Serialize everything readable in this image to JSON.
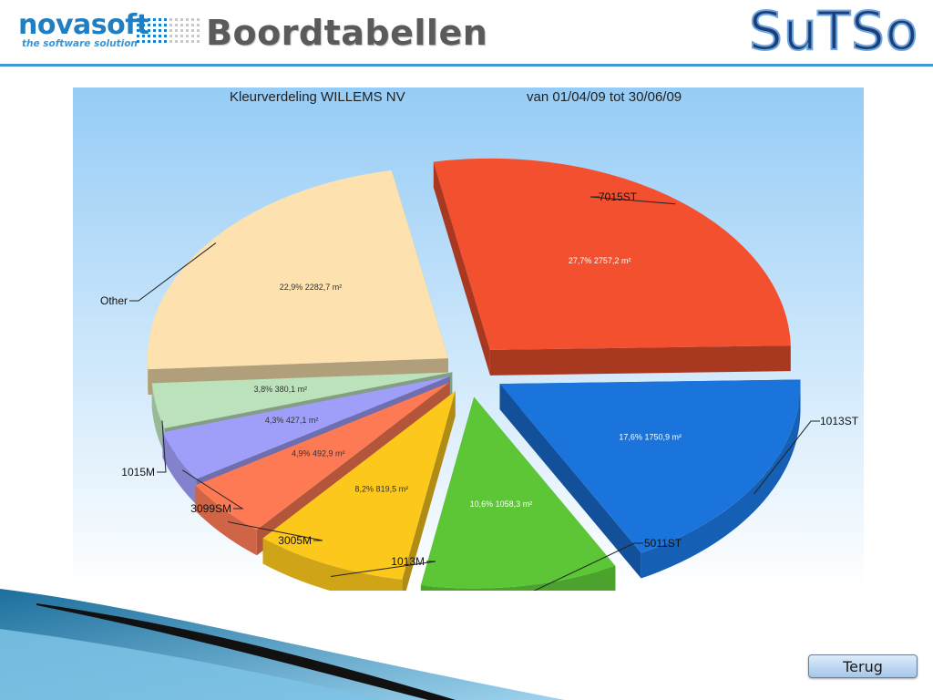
{
  "header": {
    "brand_left": "novasoft",
    "brand_tagline": "the software solution",
    "title": "Boordtabellen",
    "brand_right": "SuTSo"
  },
  "chart_data": {
    "type": "pie",
    "title": "Kleurverdeling WILLEMS NV",
    "subtitle": "van 01/04/09 tot 30/06/09",
    "unit": "m²",
    "slices": [
      {
        "name": "7015ST",
        "percent_label": "27,7%",
        "value_label": "2757,2 m²",
        "value": 2757.2,
        "color": "#f2502e"
      },
      {
        "name": "1013ST",
        "percent_label": "17,6%",
        "value_label": "1750,9 m²",
        "value": 1750.9,
        "color": "#1a74dc"
      },
      {
        "name": "5011ST",
        "percent_label": "10,6%",
        "value_label": "1058,3 m²",
        "value": 1058.3,
        "color": "#5cc637"
      },
      {
        "name": "1013M",
        "percent_label": "8,2%",
        "value_label": "819,5 m²",
        "value": 819.5,
        "color": "#fcc81c"
      },
      {
        "name": "3005M",
        "percent_label": "4,9%",
        "value_label": "492,9 m²",
        "value": 492.9,
        "color": "#fe7a55"
      },
      {
        "name": "3099SM",
        "percent_label": "4,3%",
        "value_label": "427,1 m²",
        "value": 427.1,
        "color": "#9f9ffa"
      },
      {
        "name": "1015M",
        "percent_label": "3,8%",
        "value_label": "380,1 m²",
        "value": 380.1,
        "color": "#bce2bb"
      },
      {
        "name": "Other",
        "percent_label": "22,9%",
        "value_label": "2282,7 m²",
        "value": 2282.7,
        "color": "#fde2b0"
      }
    ]
  },
  "footer": {
    "back_button": "Terug"
  }
}
